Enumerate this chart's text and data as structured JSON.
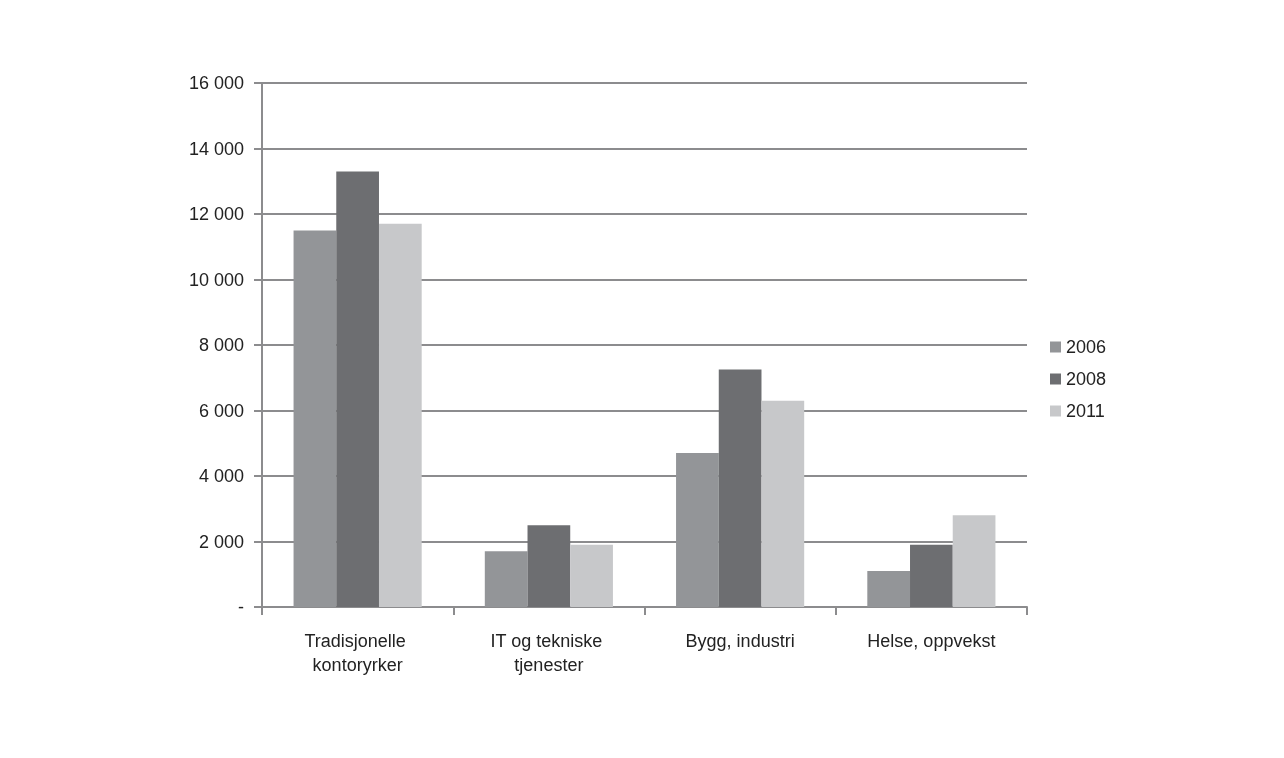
{
  "chart_data": {
    "type": "bar",
    "categories": [
      "Tradisjonelle kontoryrker",
      "IT og tekniske tjenester",
      "Bygg, industri",
      "Helse, oppvekst"
    ],
    "series": [
      {
        "name": "2006",
        "color": "#939598",
        "values": [
          11500,
          1700,
          4700,
          1100
        ]
      },
      {
        "name": "2008",
        "color": "#6d6e71",
        "values": [
          13300,
          2500,
          7250,
          1900
        ]
      },
      {
        "name": "2011",
        "color": "#c7c8ca",
        "values": [
          11700,
          1900,
          6300,
          2800
        ]
      }
    ],
    "ylim": [
      0,
      16000
    ],
    "yticks": [
      {
        "value": 0,
        "label": "-"
      },
      {
        "value": 2000,
        "label": "2 000"
      },
      {
        "value": 4000,
        "label": "4 000"
      },
      {
        "value": 6000,
        "label": "6 000"
      },
      {
        "value": 8000,
        "label": "8 000"
      },
      {
        "value": 10000,
        "label": "10 000"
      },
      {
        "value": 12000,
        "label": "12 000"
      },
      {
        "value": 14000,
        "label": "14 000"
      },
      {
        "value": 16000,
        "label": "16 000"
      }
    ],
    "grid": "y",
    "legend": "right"
  }
}
